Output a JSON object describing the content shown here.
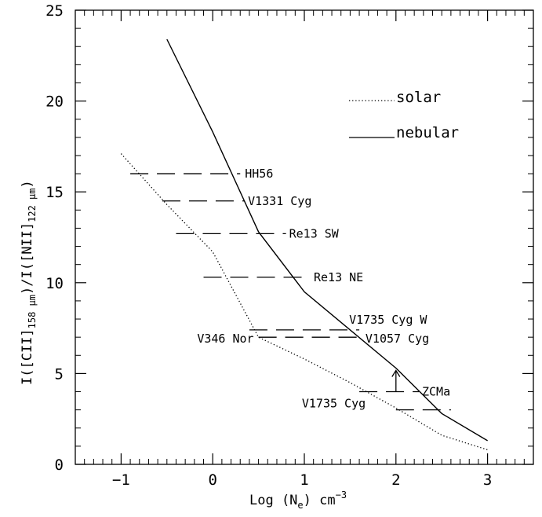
{
  "chart_data": {
    "type": "line",
    "xlabel": "Log (N",
    "xlabel_sub": "e",
    "xlabel_unit": ") cm",
    "xlabel_sup": "−3",
    "ylabel": "I([CII]",
    "ylabel_sub1": "158 μm",
    "ylabel_mid": ")/I([NII]",
    "ylabel_sub2": "122 μm",
    "ylabel_end": ")",
    "xlim": [
      -1.5,
      3.5
    ],
    "ylim": [
      0,
      25
    ],
    "x_ticks": [
      {
        "value": -1,
        "label": "−1"
      },
      {
        "value": 0,
        "label": "0"
      },
      {
        "value": 1,
        "label": "1"
      },
      {
        "value": 2,
        "label": "2"
      },
      {
        "value": 3,
        "label": "3"
      }
    ],
    "y_ticks": [
      {
        "value": 0,
        "label": "0"
      },
      {
        "value": 5,
        "label": "5"
      },
      {
        "value": 10,
        "label": "10"
      },
      {
        "value": 15,
        "label": "15"
      },
      {
        "value": 20,
        "label": "20"
      },
      {
        "value": 25,
        "label": "25"
      }
    ],
    "grid": false,
    "legend": [
      {
        "label": "solar",
        "style": "dotted"
      },
      {
        "label": "nebular",
        "style": "solid"
      }
    ],
    "series": [
      {
        "name": "solar",
        "style": "dotted",
        "x": [
          -1,
          -0.5,
          0,
          0.5,
          1,
          1.5,
          2,
          2.5,
          3
        ],
        "y": [
          17.1,
          14.3,
          11.7,
          7.0,
          5.8,
          4.5,
          3.1,
          1.6,
          0.8
        ]
      },
      {
        "name": "nebular",
        "style": "solid",
        "x": [
          -0.5,
          0,
          0.5,
          1,
          1.5,
          2,
          2.5,
          3
        ],
        "y": [
          23.4,
          18.3,
          12.8,
          9.5,
          7.4,
          5.3,
          2.8,
          1.3
        ]
      }
    ],
    "sources": [
      {
        "label": "HH56",
        "x": [
          -0.9,
          0.3
        ],
        "y": 16.0
      },
      {
        "label": "V1331 Cyg",
        "x": [
          -0.55,
          0.35
        ],
        "y": 14.5
      },
      {
        "label": "Re13 SW",
        "x": [
          -0.4,
          0.8
        ],
        "y": 12.7
      },
      {
        "label": "Re13 NE",
        "x": [
          -0.1,
          1.0
        ],
        "y": 10.3
      },
      {
        "label": "V1735 Cyg W",
        "x": [
          0.4,
          1.6
        ],
        "y": 7.4
      },
      {
        "label": "V346 Nor",
        "x": [
          0.5,
          1.65
        ],
        "y": 7.0
      },
      {
        "label": "V1057 Cyg",
        "x": [
          0.5,
          1.65
        ],
        "y": 7.0
      },
      {
        "label": "ZCMa",
        "x": [
          1.6,
          2.25
        ],
        "y": 4.0,
        "arrow_up": true
      },
      {
        "label": "V1735 Cyg",
        "x": [
          2.0,
          2.6
        ],
        "y": 3.0
      }
    ]
  }
}
